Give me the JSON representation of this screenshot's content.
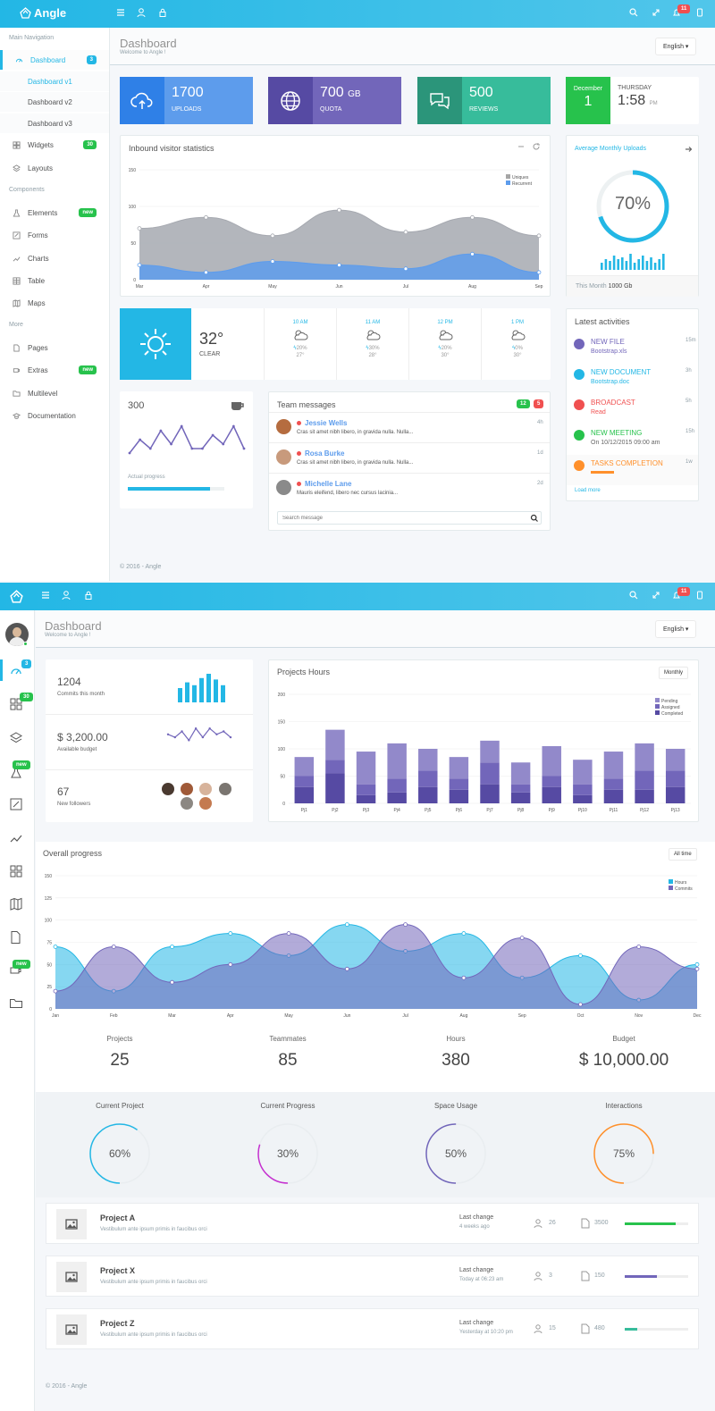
{
  "top1": {
    "brand": "Angle",
    "badge": "11"
  },
  "sidebar": {
    "head_main": "Main Navigation",
    "dashboard": "Dashboard",
    "dashboard_badge": "3",
    "dash_v1": "Dashboard v1",
    "dash_v2": "Dashboard v2",
    "dash_v3": "Dashboard v3",
    "widgets": "Widgets",
    "widgets_badge": "30",
    "layouts": "Layouts",
    "head_components": "Components",
    "elements": "Elements",
    "elements_badge": "new",
    "forms": "Forms",
    "charts": "Charts",
    "table": "Table",
    "maps": "Maps",
    "head_more": "More",
    "pages": "Pages",
    "extras": "Extras",
    "extras_badge": "new",
    "multilevel": "Multilevel",
    "documentation": "Documentation"
  },
  "header1": {
    "title": "Dashboard",
    "subtitle": "Welcome to Angle !",
    "lang": "English"
  },
  "stats": {
    "uploads_num": "1700",
    "uploads_lbl": "UPLOADS",
    "quota_num": "700",
    "quota_unit": "GB",
    "quota_lbl": "QUOTA",
    "reviews_num": "500",
    "reviews_lbl": "REVIEWS",
    "date_month": "December",
    "date_day": "1",
    "date_weekday": "THURSDAY",
    "date_time": "1:58",
    "date_ampm": "PM"
  },
  "inbound": {
    "title": "Inbound visitor statistics",
    "legend1": "Uniques",
    "legend2": "Recurrent",
    "chart_data": {
      "type": "area",
      "title": "Inbound visitor statistics",
      "categories": [
        "Mar",
        "Apr",
        "May",
        "Jun",
        "Jul",
        "Aug",
        "Sep"
      ],
      "ylim": [
        0,
        150
      ],
      "yticks": [
        "150",
        "100",
        "50",
        "0"
      ],
      "series": [
        {
          "name": "Uniques",
          "values": [
            70,
            85,
            60,
            95,
            65,
            85,
            60
          ]
        },
        {
          "name": "Recurrent",
          "values": [
            20,
            10,
            25,
            20,
            15,
            35,
            10
          ]
        }
      ]
    }
  },
  "monthly": {
    "title": "Average Monthly Uploads",
    "percent": "70%",
    "percent_value": 70,
    "footer_label": "This Month",
    "footer_value": "1000 Gb",
    "bars": [
      4,
      6,
      5,
      8,
      6,
      7,
      5,
      9,
      4,
      6,
      8,
      5,
      7,
      4,
      6,
      9
    ]
  },
  "weather": {
    "temp": "32°",
    "cond": "CLEAR",
    "hours": [
      {
        "time": "10 AM",
        "rain": "20%",
        "temp": "27°"
      },
      {
        "time": "11 AM",
        "rain": "30%",
        "temp": "28°"
      },
      {
        "time": "12 PM",
        "rain": "20%",
        "temp": "30°"
      },
      {
        "time": "1 PM",
        "rain": "0%",
        "temp": "30°"
      }
    ]
  },
  "progress": {
    "value": "300",
    "label": "Actual progress",
    "fill": 0.85,
    "spark": [
      2,
      5,
      3,
      7,
      4,
      8,
      3,
      3,
      6,
      4,
      8,
      3
    ]
  },
  "messages": {
    "title": "Team messages",
    "badge1": "12",
    "badge2": "5",
    "items": [
      {
        "name": "Jessie Wells",
        "text": "Cras sit amet nibh libero, in gravida nulla. Nulla...",
        "time": "4h"
      },
      {
        "name": "Rosa Burke",
        "text": "Cras sit amet nibh libero, in gravida nulla. Nulla...",
        "time": "1d"
      },
      {
        "name": "Michelle Lane",
        "text": "Mauris eleifend, libero nec cursus lacinia...",
        "time": "2d"
      }
    ],
    "search_placeholder": "Search message"
  },
  "activities": {
    "title": "Latest activities",
    "items": [
      {
        "title": "NEW FILE",
        "sub": "Bootstrap.xls",
        "time": "15m",
        "color": "#7266ba"
      },
      {
        "title": "NEW DOCUMENT",
        "sub": "Bootstrap.doc",
        "time": "3h",
        "color": "#23b7e5"
      },
      {
        "title": "BROADCAST",
        "sub": "Read",
        "time": "5h",
        "color": "#f05050"
      },
      {
        "title": "NEW MEETING",
        "sub": "On 10/12/2015 09:00 am",
        "time": "15h",
        "color": "#27c24c"
      },
      {
        "title": "TASKS COMPLETION",
        "sub": "",
        "time": "1w",
        "color": "#ff902b"
      }
    ],
    "load_more": "Load more"
  },
  "footer1": "© 2016 - Angle",
  "top2": {
    "badge": "11"
  },
  "sidebar2": {
    "badge_dash": "3",
    "badge_widgets": "30",
    "badge_new1": "new",
    "badge_new2": "new"
  },
  "header2": {
    "title": "Dashboard",
    "subtitle": "Welcome to Angle !",
    "lang": "English"
  },
  "mini": {
    "commits_num": "1204",
    "commits_lbl": "Commits this month",
    "commit_bars": [
      10,
      14,
      12,
      17,
      20,
      16,
      12
    ],
    "budget_num": "$ 3,200.00",
    "budget_lbl": "Available budget",
    "budget_spark": [
      4,
      3,
      5,
      2,
      6,
      3,
      6,
      4,
      5,
      3
    ],
    "followers_num": "67",
    "followers_lbl": "New followers"
  },
  "proj_hours": {
    "title": "Projects Hours",
    "btn": "Monthly",
    "legend": [
      "Pending",
      "Assigned",
      "Completed"
    ],
    "chart_data": {
      "type": "bar",
      "stacked": true,
      "title": "Projects Hours",
      "categories": [
        "Pj1",
        "Pj2",
        "Pj3",
        "Pj4",
        "Pj5",
        "Pj6",
        "Pj7",
        "Pj8",
        "Pj9",
        "Pj10",
        "Pj11",
        "Pj12",
        "Pj13"
      ],
      "ylim": [
        0,
        200
      ],
      "yticks": [
        "200",
        "150",
        "100",
        "50",
        "0"
      ],
      "series": [
        {
          "name": "Completed",
          "values": [
            30,
            55,
            15,
            20,
            30,
            25,
            35,
            20,
            30,
            15,
            25,
            25,
            30
          ]
        },
        {
          "name": "Assigned",
          "values": [
            20,
            25,
            20,
            25,
            30,
            20,
            40,
            15,
            20,
            20,
            20,
            35,
            30
          ]
        },
        {
          "name": "Pending",
          "values": [
            35,
            55,
            60,
            65,
            40,
            40,
            40,
            40,
            55,
            45,
            50,
            50,
            40
          ]
        }
      ]
    }
  },
  "overall": {
    "title": "Overall progress",
    "btn": "All time",
    "legend": [
      "Hours",
      "Commits"
    ],
    "chart_data": {
      "type": "area",
      "title": "Overall progress",
      "categories": [
        "Jan",
        "Feb",
        "Mar",
        "Apr",
        "May",
        "Jun",
        "Jul",
        "Aug",
        "Sep",
        "Oct",
        "Nov",
        "Dec"
      ],
      "ylim": [
        0,
        150
      ],
      "yticks": [
        "150",
        "125",
        "100",
        "75",
        "50",
        "25",
        "0"
      ],
      "series": [
        {
          "name": "Hours",
          "values": [
            70,
            20,
            70,
            85,
            60,
            95,
            65,
            85,
            35,
            60,
            10,
            50
          ]
        },
        {
          "name": "Commits",
          "values": [
            20,
            70,
            30,
            50,
            85,
            45,
            95,
            35,
            80,
            5,
            70,
            45
          ]
        }
      ]
    }
  },
  "summary": [
    {
      "label": "Projects",
      "value": "25"
    },
    {
      "label": "Teammates",
      "value": "85"
    },
    {
      "label": "Hours",
      "value": "380"
    },
    {
      "label": "Budget",
      "value": "$ 10,000.00"
    }
  ],
  "radials": [
    {
      "label": "Current Project",
      "text": "60%",
      "value": 60,
      "color": "#23b7e5"
    },
    {
      "label": "Current Progress",
      "text": "30%",
      "value": 30,
      "color": "#c530d0"
    },
    {
      "label": "Space Usage",
      "text": "50%",
      "value": 50,
      "color": "#7266ba"
    },
    {
      "label": "Interactions",
      "text": "75%",
      "value": 75,
      "color": "#ff902b"
    }
  ],
  "projects": [
    {
      "name": "Project A",
      "desc": "Vestibulum ante ipsum primis in faucibus orci",
      "change_lbl": "Last change",
      "change": "4 weeks ago",
      "users": "26",
      "files": "3500",
      "progress": 0.8,
      "color": "#27c24c"
    },
    {
      "name": "Project X",
      "desc": "Vestibulum ante ipsum primis in faucibus orci",
      "change_lbl": "Last change",
      "change": "Today at 06:23 am",
      "users": "3",
      "files": "150",
      "progress": 0.5,
      "color": "#7266ba"
    },
    {
      "name": "Project Z",
      "desc": "Vestibulum ante ipsum primis in faucibus orci",
      "change_lbl": "Last change",
      "change": "Yesterday at 10:20 pm",
      "users": "15",
      "files": "480",
      "progress": 0.2,
      "color": "#37bc9b"
    }
  ],
  "footer2": "© 2016 - Angle"
}
